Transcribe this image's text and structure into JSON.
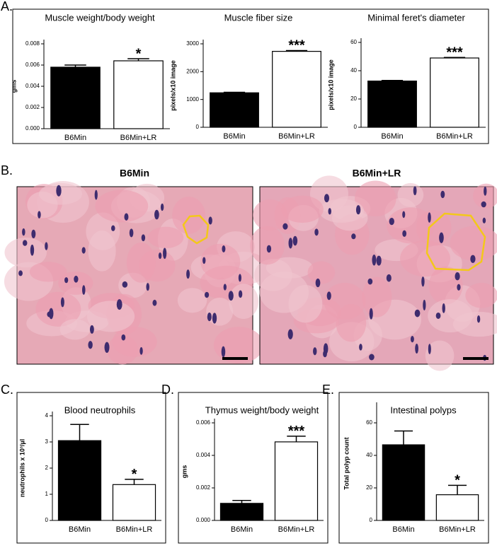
{
  "chart_data": [
    {
      "type": "bar",
      "title": "Muscle weight/body weight",
      "y_label": "gms",
      "categories": [
        "B6Min",
        "B6Min+LR"
      ],
      "values": [
        0.0058,
        0.0064
      ],
      "errors": [
        0.0002,
        0.0002
      ],
      "colors": [
        "#000000",
        "#ffffff"
      ],
      "significance": [
        null,
        "*"
      ],
      "ylim": [
        0,
        0.008
      ],
      "yticks": [
        {
          "value": 0,
          "label": "0.000"
        },
        {
          "value": 0.002,
          "label": "0.002"
        },
        {
          "value": 0.004,
          "label": "0.004"
        },
        {
          "value": 0.006,
          "label": "0.006"
        },
        {
          "value": 0.008,
          "label": "0.008"
        }
      ]
    },
    {
      "type": "bar",
      "title": "Muscle fiber size",
      "y_label": "pixels/x10 image",
      "categories": [
        "B6Min",
        "B6Min+LR"
      ],
      "values": [
        1240,
        2730
      ],
      "errors": [
        20,
        30
      ],
      "colors": [
        "#000000",
        "#ffffff"
      ],
      "significance": [
        null,
        "***"
      ],
      "ylim": [
        0,
        3000
      ],
      "yticks": [
        0,
        1000,
        2000,
        3000
      ]
    },
    {
      "type": "bar",
      "title": "Minimal feret's diameter",
      "y_label": "pixels/x10 image",
      "categories": [
        "B6Min",
        "B6Min+LR"
      ],
      "values": [
        32.7,
        49
      ],
      "errors": [
        0.4,
        0.4
      ],
      "colors": [
        "#000000",
        "#ffffff"
      ],
      "significance": [
        null,
        "***"
      ],
      "ylim": [
        0,
        60
      ],
      "yticks": [
        0,
        20,
        40,
        60
      ]
    },
    {
      "type": "bar",
      "title": "Blood neutrophils",
      "y_label": "neutrophils x 10³/µl",
      "categories": [
        "B6Min",
        "B6Min+LR"
      ],
      "values": [
        3.05,
        1.37
      ],
      "errors": [
        0.62,
        0.2
      ],
      "colors": [
        "#000000",
        "#ffffff"
      ],
      "significance": [
        null,
        "*"
      ],
      "ylim": [
        0,
        4
      ],
      "yticks": [
        0,
        1,
        2,
        3,
        4
      ]
    },
    {
      "type": "bar",
      "title": "Thymus weight/body weight",
      "y_label": "gms",
      "categories": [
        "B6Min",
        "B6Min+LR"
      ],
      "values": [
        0.00105,
        0.00483
      ],
      "errors": [
        0.00018,
        0.00035
      ],
      "colors": [
        "#000000",
        "#ffffff"
      ],
      "significance": [
        null,
        "***"
      ],
      "ylim": [
        0,
        0.006
      ],
      "yticks": [
        {
          "value": 0,
          "label": "0.000"
        },
        {
          "value": 0.002,
          "label": "0.002"
        },
        {
          "value": 0.004,
          "label": "0.004"
        },
        {
          "value": 0.006,
          "label": "0.006"
        }
      ]
    },
    {
      "type": "bar",
      "title": "Intestinal polyps",
      "y_label": "Total polyp count",
      "categories": [
        "B6Min",
        "B6Min+LR"
      ],
      "values": [
        46.5,
        15.8
      ],
      "errors": [
        8.5,
        5.8
      ],
      "colors": [
        "#000000",
        "#ffffff"
      ],
      "significance": [
        null,
        "*"
      ],
      "ylim": [
        0,
        70
      ],
      "yticks": [
        0,
        20,
        40,
        60
      ]
    }
  ],
  "panel_labels": [
    "A.",
    "B.",
    "C.",
    "D.",
    "E."
  ],
  "images": [
    {
      "title": "B6Min"
    },
    {
      "title": "B6Min+LR"
    }
  ]
}
